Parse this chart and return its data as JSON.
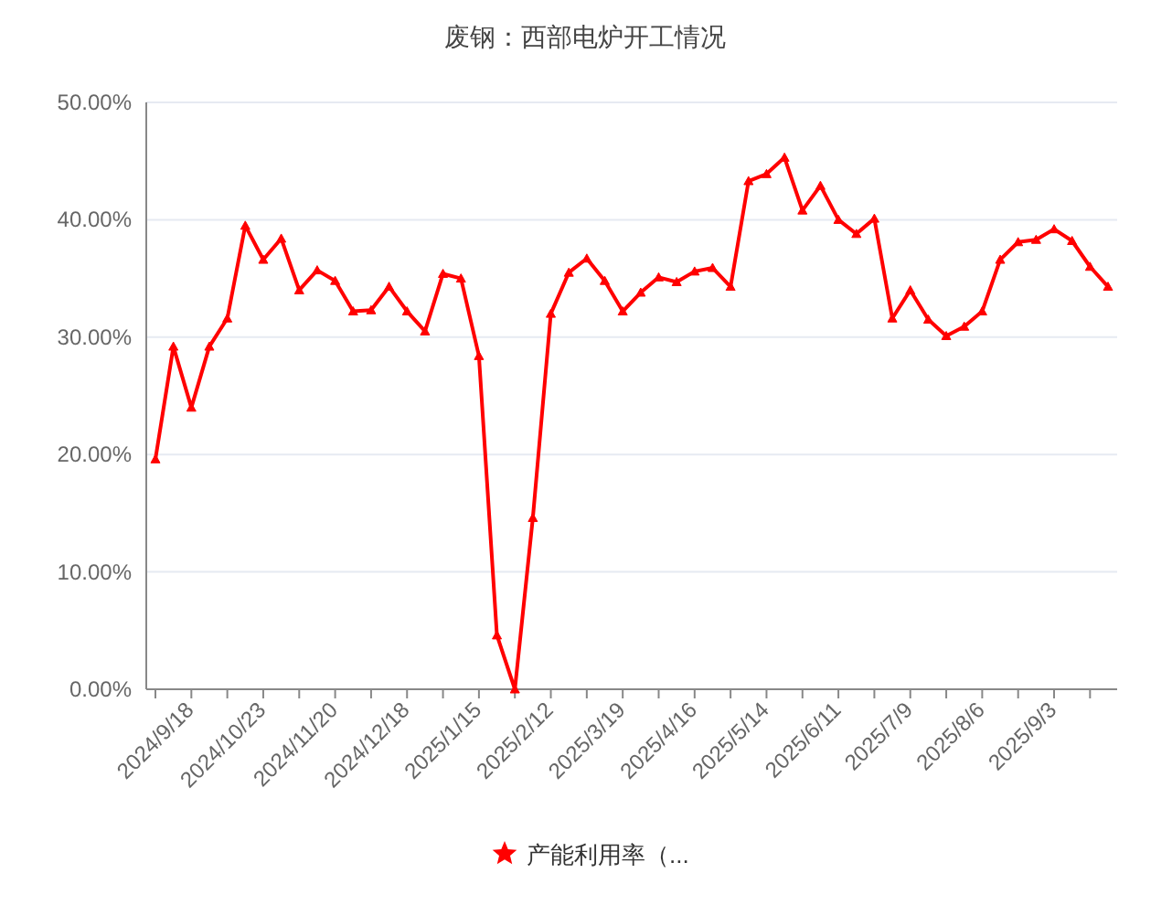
{
  "chart_data": {
    "type": "line",
    "title": "废钢：西部电炉开工情况",
    "categories": [
      null,
      null,
      "2024/9/18",
      null,
      null,
      null,
      "2024/10/23",
      null,
      null,
      null,
      "2024/11/20",
      null,
      null,
      null,
      "2024/12/18",
      null,
      null,
      null,
      "2025/1/15",
      null,
      null,
      null,
      "2025/2/12",
      null,
      null,
      null,
      "2025/3/19",
      null,
      null,
      null,
      "2025/4/16",
      null,
      null,
      null,
      "2025/5/14",
      null,
      null,
      null,
      "2025/6/11",
      null,
      null,
      null,
      "2025/7/9",
      null,
      null,
      null,
      "2025/8/6",
      null,
      null,
      null,
      "2025/9/3",
      null,
      null,
      null
    ],
    "series": [
      {
        "name": "产能利用率（...",
        "color": "#ff0000",
        "values": [
          19.6,
          29.2,
          24.0,
          29.2,
          31.6,
          39.5,
          36.6,
          38.4,
          34.0,
          35.7,
          34.8,
          32.2,
          32.3,
          34.3,
          32.2,
          30.5,
          35.4,
          35.0,
          28.4,
          4.6,
          0,
          14.6,
          32.0,
          35.5,
          36.7,
          34.8,
          32.2,
          33.8,
          35.1,
          34.7,
          35.6,
          35.9,
          34.3,
          43.3,
          43.9,
          45.3,
          40.8,
          42.9,
          40.0,
          38.8,
          40.1,
          31.6,
          34.0,
          31.5,
          30.1,
          30.9,
          32.2,
          36.6,
          38.1,
          38.3,
          39.2,
          38.2,
          36.0,
          34.3
        ]
      }
    ],
    "ylim": [
      0,
      50
    ],
    "yticks": [
      {
        "value": 0,
        "label": "0.00%"
      },
      {
        "value": 10,
        "label": "10.00%"
      },
      {
        "value": 20,
        "label": "20.00%"
      },
      {
        "value": 30,
        "label": "30.00%"
      },
      {
        "value": 40,
        "label": "40.00%"
      },
      {
        "value": 50,
        "label": "50.00%"
      }
    ],
    "grid": "y",
    "legend": "bottom",
    "marker": "triangle",
    "line_style": "solid"
  }
}
